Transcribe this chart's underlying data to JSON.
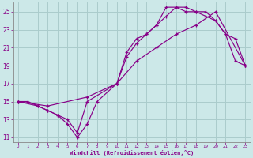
{
  "xlabel": "Windchill (Refroidissement éolien,°C)",
  "bg_color": "#cce8e8",
  "grid_color": "#aacccc",
  "line_color": "#880088",
  "xlim": [
    -0.5,
    23.5
  ],
  "ylim": [
    10.5,
    26.0
  ],
  "xticks": [
    0,
    1,
    2,
    3,
    4,
    5,
    6,
    7,
    8,
    9,
    10,
    11,
    12,
    13,
    14,
    15,
    16,
    17,
    18,
    19,
    20,
    21,
    22,
    23
  ],
  "yticks": [
    11,
    13,
    15,
    17,
    19,
    21,
    23,
    25
  ],
  "line1_x": [
    0,
    1,
    2,
    3,
    4,
    5,
    6,
    7,
    8,
    10,
    11,
    12,
    13,
    14,
    15,
    16,
    17,
    18,
    19,
    20,
    21,
    22,
    23
  ],
  "line1_y": [
    15,
    15,
    14.5,
    14.0,
    13.5,
    12.5,
    11.0,
    12.5,
    15.0,
    17.0,
    20.0,
    21.5,
    22.5,
    23.5,
    25.5,
    25.5,
    25.5,
    25.0,
    25.0,
    24.0,
    22.5,
    19.5,
    19.0
  ],
  "line2_x": [
    0,
    2,
    3,
    4,
    5,
    6,
    7,
    10,
    11,
    12,
    13,
    14,
    15,
    16,
    17,
    18,
    19,
    20,
    21,
    22,
    23
  ],
  "line2_y": [
    15,
    14.5,
    14.0,
    13.5,
    13.0,
    11.5,
    15.0,
    17.0,
    20.5,
    22.0,
    22.5,
    23.5,
    24.5,
    25.5,
    25.0,
    25.0,
    24.5,
    24.0,
    22.5,
    22.0,
    19.0
  ],
  "line3_x": [
    0,
    3,
    7,
    10,
    12,
    14,
    16,
    18,
    20,
    23
  ],
  "line3_y": [
    15,
    14.5,
    15.5,
    17.0,
    19.5,
    21.0,
    22.5,
    23.5,
    25.0,
    19.0
  ]
}
